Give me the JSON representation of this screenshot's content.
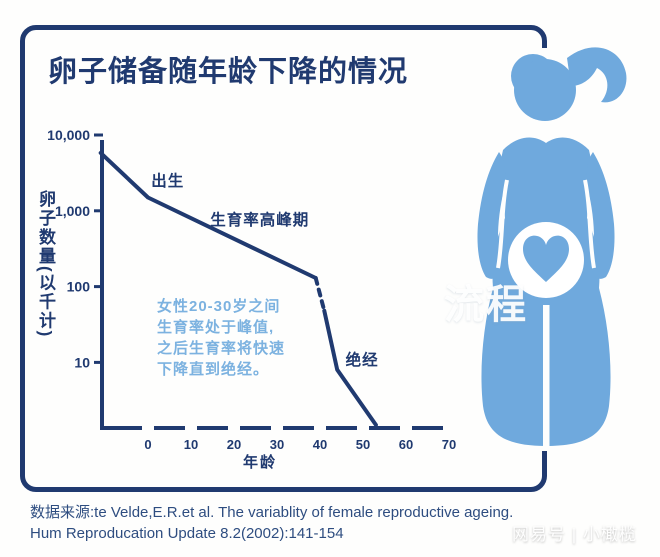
{
  "card": {
    "title": "卵子储备随年龄下降的情况"
  },
  "colors": {
    "navy": "#203a70",
    "figure_blue": "#6fa9dd",
    "note_blue": "#7cb2e0",
    "source_text": "#2e4d80",
    "background": "#fefefd"
  },
  "chart_data": {
    "type": "line",
    "title": "卵子储备随年龄下降的情况",
    "xlabel": "年龄",
    "ylabel": "卵子数量(以千计)",
    "y_scale": "log",
    "x_ticks": [
      0,
      10,
      20,
      30,
      40,
      50,
      60,
      70
    ],
    "y_ticks": [
      {
        "value": 10000,
        "label": "10,000"
      },
      {
        "value": 1000,
        "label": "1,000"
      },
      {
        "value": 100,
        "label": "100"
      },
      {
        "value": 10,
        "label": "10"
      }
    ],
    "series": [
      {
        "name": "卵子数量(千)",
        "segments": [
          {
            "style": "solid",
            "points": [
              {
                "age": -11,
                "value": 5800
              },
              {
                "age": 0,
                "value": 1500
              },
              {
                "age": 39,
                "value": 130
              }
            ]
          },
          {
            "style": "dashed",
            "points": [
              {
                "age": 39,
                "value": 130
              },
              {
                "age": 41,
                "value": 48
              }
            ]
          },
          {
            "style": "solid",
            "points": [
              {
                "age": 41,
                "value": 48
              },
              {
                "age": 44,
                "value": 8
              },
              {
                "age": 53,
                "value": 1.5
              }
            ]
          }
        ]
      }
    ],
    "annotations": [
      {
        "text": "出生",
        "age": 4.6,
        "value": 2470
      },
      {
        "text": "生育率高峰期",
        "age": 26,
        "value": 760
      },
      {
        "text": "绝经",
        "age": 49.8,
        "value": 10.8
      }
    ],
    "note_lines": [
      "女性20-30岁之间",
      "生育率处于峰值,",
      "之后生育率将快速",
      "下降直到绝经。"
    ],
    "legend": "off",
    "grid": "off"
  },
  "figure": {
    "description": "pregnant-woman-silhouette-with-heart-in-belly"
  },
  "watermarks": {
    "center": "流程",
    "bottom_right": "网易号 | 小橄榄"
  },
  "source": {
    "line1": "数据来源:te Velde,E.R.et al. The variablity of female reproductive ageing.",
    "line2": "Hum Reproducation Update 8.2(2002):141-154"
  }
}
